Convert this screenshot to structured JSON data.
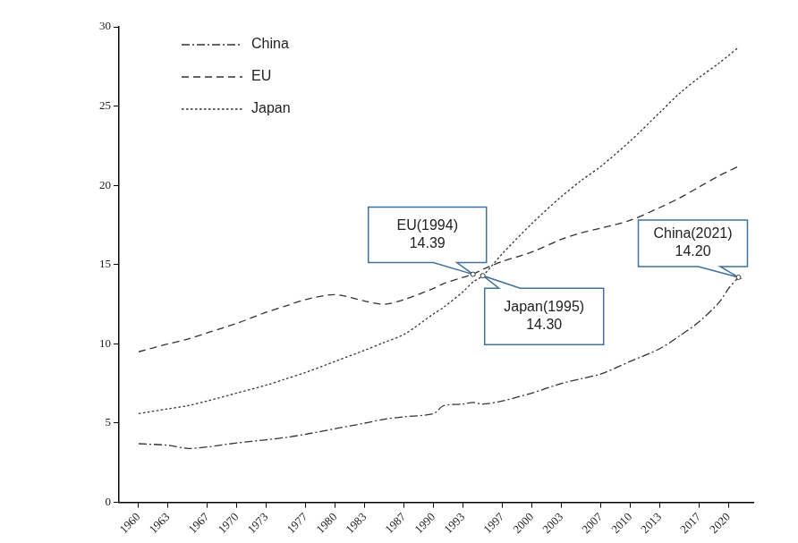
{
  "chart_data": {
    "type": "line",
    "x": [
      1960,
      1963,
      1965,
      1967,
      1970,
      1973,
      1975,
      1977,
      1980,
      1983,
      1985,
      1987,
      1990,
      1991,
      1993,
      1994,
      1995,
      1997,
      2000,
      2003,
      2005,
      2007,
      2010,
      2013,
      2015,
      2017,
      2019,
      2020,
      2021
    ],
    "series": [
      {
        "name": "China",
        "color": "#333333",
        "line_style": "dashdot",
        "values": [
          3.7,
          3.6,
          3.4,
          3.5,
          3.75,
          3.95,
          4.1,
          4.3,
          4.65,
          5.0,
          5.25,
          5.4,
          5.6,
          6.1,
          6.2,
          6.3,
          6.2,
          6.4,
          6.9,
          7.5,
          7.8,
          8.1,
          8.9,
          9.7,
          10.5,
          11.4,
          12.6,
          13.5,
          14.2
        ]
      },
      {
        "name": "EU",
        "color": "#333333",
        "line_style": "dashed",
        "values": [
          9.5,
          10.0,
          10.3,
          10.7,
          11.3,
          12.0,
          12.4,
          12.8,
          13.1,
          12.7,
          12.5,
          12.8,
          13.5,
          13.8,
          14.2,
          14.39,
          14.7,
          15.2,
          15.8,
          16.6,
          17.0,
          17.3,
          17.8,
          18.6,
          19.2,
          19.9,
          20.6,
          20.9,
          21.2
        ]
      },
      {
        "name": "Japan",
        "color": "#333333",
        "line_style": "dotted",
        "values": [
          5.6,
          5.9,
          6.1,
          6.4,
          6.9,
          7.4,
          7.8,
          8.2,
          8.9,
          9.6,
          10.1,
          10.6,
          11.9,
          12.3,
          13.3,
          13.9,
          14.3,
          15.7,
          17.6,
          19.3,
          20.3,
          21.2,
          22.8,
          24.6,
          25.8,
          26.8,
          27.7,
          28.2,
          28.7
        ]
      }
    ],
    "xlim": [
      1958,
      2022.5
    ],
    "xticks": [
      1960,
      1963,
      1967,
      1970,
      1973,
      1977,
      1980,
      1983,
      1987,
      1990,
      1993,
      1997,
      2000,
      2003,
      2007,
      2010,
      2013,
      2017,
      2020
    ],
    "ylim": [
      0,
      30
    ],
    "yticks": [
      0,
      5,
      10,
      15,
      20,
      25,
      30
    ],
    "grid": false,
    "legend": "upper left",
    "annotations": [
      {
        "x": 1994,
        "y": 14.39,
        "text": [
          "EU(1994)",
          "14.39"
        ]
      },
      {
        "x": 1995,
        "y": 14.3,
        "text": [
          "Japan(1995)",
          "14.30"
        ]
      },
      {
        "x": 2021,
        "y": 14.2,
        "text": [
          "China(2021)",
          "14.20"
        ]
      }
    ]
  }
}
